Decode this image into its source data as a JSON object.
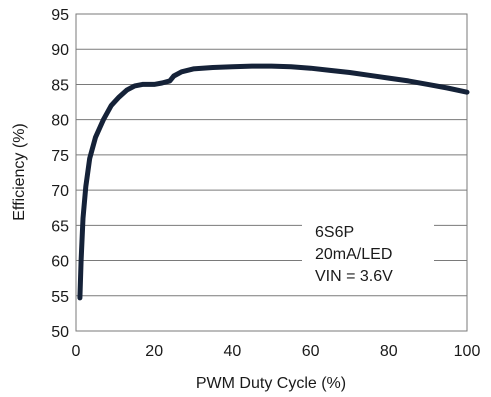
{
  "chart_data": {
    "type": "line",
    "title": "",
    "xlabel": "PWM Duty Cycle (%)",
    "ylabel": "Efficiency (%)",
    "xlim": [
      0,
      100
    ],
    "ylim": [
      50,
      95
    ],
    "x_ticks": [
      0,
      20,
      40,
      60,
      80,
      100
    ],
    "y_ticks": [
      50,
      55,
      60,
      65,
      70,
      75,
      80,
      85,
      90,
      95
    ],
    "grid": "horizontal",
    "line_color": "#152238",
    "annotation": [
      "6S6P",
      "20mA/LED",
      "VIN = 3.6V"
    ],
    "series": [
      {
        "x": [
          1,
          1.3,
          1.8,
          2.5,
          3.5,
          5,
          7,
          9,
          11,
          13,
          15,
          17,
          20,
          22,
          24,
          25,
          27,
          30,
          35,
          40,
          45,
          50,
          55,
          60,
          65,
          70,
          75,
          80,
          85,
          90,
          95,
          100
        ],
        "y": [
          54.7,
          60,
          66,
          70.5,
          74.5,
          77.5,
          80,
          82,
          83.2,
          84.2,
          84.8,
          85,
          85,
          85.2,
          85.5,
          86.2,
          86.8,
          87.2,
          87.4,
          87.5,
          87.6,
          87.6,
          87.5,
          87.3,
          87,
          86.7,
          86.3,
          85.9,
          85.5,
          85,
          84.5,
          83.9
        ]
      }
    ]
  }
}
